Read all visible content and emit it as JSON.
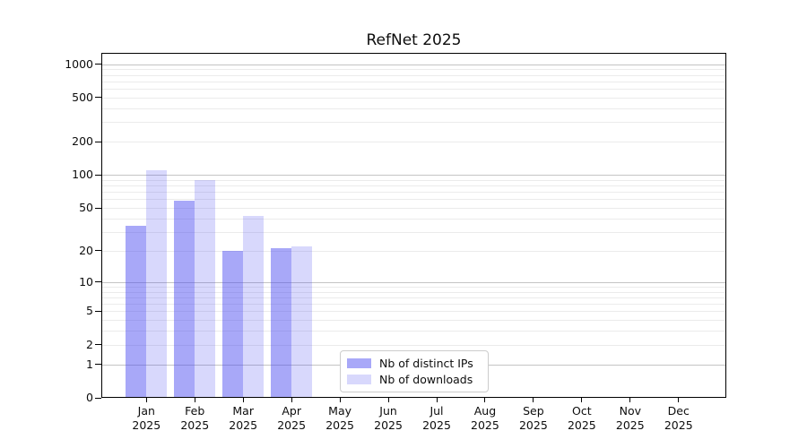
{
  "chart_data": {
    "type": "bar",
    "title": "RefNet 2025",
    "x_tick_year": "2025",
    "categories": [
      "Jan",
      "Feb",
      "Mar",
      "Apr",
      "May",
      "Jun",
      "Jul",
      "Aug",
      "Sep",
      "Oct",
      "Nov",
      "Dec"
    ],
    "series": [
      {
        "name": "Nb of distinct IPs",
        "color": "rgba(70,70,240,0.47)",
        "values": [
          34,
          58,
          20,
          21,
          0,
          0,
          0,
          0,
          0,
          0,
          0,
          0
        ]
      },
      {
        "name": "Nb of downloads",
        "color": "rgba(70,70,240,0.21)",
        "values": [
          110,
          90,
          42,
          22,
          0,
          0,
          0,
          0,
          0,
          0,
          0,
          0
        ]
      }
    ],
    "yscale": "log1p",
    "ylim": [
      0,
      1265
    ],
    "y_ticks": [
      0,
      1,
      2,
      5,
      10,
      20,
      50,
      100,
      200,
      500,
      1000
    ],
    "grid": {
      "major_lines": [
        1,
        10,
        100,
        1000
      ],
      "minor_lines": [
        2,
        3,
        4,
        5,
        6,
        7,
        8,
        9,
        20,
        30,
        40,
        50,
        60,
        70,
        80,
        90,
        200,
        300,
        400,
        500,
        600,
        700,
        800,
        900
      ],
      "major_color": "#c4c4c4",
      "minor_color": "#ebebeb"
    },
    "legend_position": "lower center",
    "xlabel": "",
    "ylabel": ""
  }
}
